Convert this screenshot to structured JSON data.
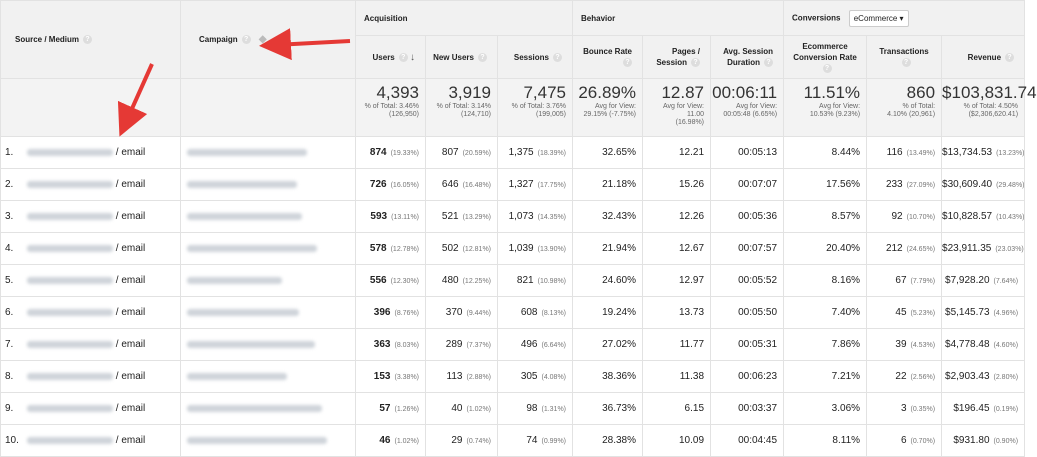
{
  "headers": {
    "source_medium": "Source / Medium",
    "campaign": "Campaign",
    "acquisition": "Acquisition",
    "behavior": "Behavior",
    "conversions": "Conversions",
    "conversions_select": "eCommerce",
    "users": "Users",
    "new_users": "New Users",
    "sessions": "Sessions",
    "bounce_rate": "Bounce Rate",
    "pages_session": "Pages / Session",
    "avg_session_duration": "Avg. Session Duration",
    "ecommerce_conversion_rate": "Ecommerce Conversion Rate",
    "transactions": "Transactions",
    "revenue": "Revenue"
  },
  "totals": {
    "users": {
      "value": "4,393",
      "sub1": "% of Total: 3.46%",
      "sub2": "(126,950)"
    },
    "new_users": {
      "value": "3,919",
      "sub1": "% of Total: 3.14%",
      "sub2": "(124,710)"
    },
    "sessions": {
      "value": "7,475",
      "sub1": "% of Total: 3.76%",
      "sub2": "(199,005)"
    },
    "bounce_rate": {
      "value": "26.89%",
      "sub1": "Avg for View:",
      "sub2": "29.15% (-7.75%)"
    },
    "pages_session": {
      "value": "12.87",
      "sub1": "Avg for View:",
      "sub2": "11.00",
      "sub3": "(16.98%)"
    },
    "avg_session_duration": {
      "value": "00:06:11",
      "sub1": "Avg for View:",
      "sub2": "00:05:48 (6.65%)"
    },
    "ecommerce_conversion_rate": {
      "value": "11.51%",
      "sub1": "Avg for View:",
      "sub2": "10.53% (9.23%)"
    },
    "transactions": {
      "value": "860",
      "sub1": "% of Total:",
      "sub2": "4.10% (20,961)"
    },
    "revenue": {
      "value": "$103,831.74",
      "sub1": "% of Total: 4.50%",
      "sub2": "($2,306,620.41)"
    }
  },
  "rows": [
    {
      "idx": "1.",
      "medium": "/ email",
      "users": "874",
      "users_pct": "(19.33%)",
      "new_users": "807",
      "new_users_pct": "(20.59%)",
      "sessions": "1,375",
      "sessions_pct": "(18.39%)",
      "bounce": "32.65%",
      "pages": "12.21",
      "duration": "00:05:13",
      "conv": "8.44%",
      "trans": "116",
      "trans_pct": "(13.49%)",
      "revenue": "$13,734.53",
      "revenue_pct": "(13.23%)"
    },
    {
      "idx": "2.",
      "medium": "/ email",
      "users": "726",
      "users_pct": "(16.05%)",
      "new_users": "646",
      "new_users_pct": "(16.48%)",
      "sessions": "1,327",
      "sessions_pct": "(17.75%)",
      "bounce": "21.18%",
      "pages": "15.26",
      "duration": "00:07:07",
      "conv": "17.56%",
      "trans": "233",
      "trans_pct": "(27.09%)",
      "revenue": "$30,609.40",
      "revenue_pct": "(29.48%)"
    },
    {
      "idx": "3.",
      "medium": "/ email",
      "users": "593",
      "users_pct": "(13.11%)",
      "new_users": "521",
      "new_users_pct": "(13.29%)",
      "sessions": "1,073",
      "sessions_pct": "(14.35%)",
      "bounce": "32.43%",
      "pages": "12.26",
      "duration": "00:05:36",
      "conv": "8.57%",
      "trans": "92",
      "trans_pct": "(10.70%)",
      "revenue": "$10,828.57",
      "revenue_pct": "(10.43%)"
    },
    {
      "idx": "4.",
      "medium": "/ email",
      "users": "578",
      "users_pct": "(12.78%)",
      "new_users": "502",
      "new_users_pct": "(12.81%)",
      "sessions": "1,039",
      "sessions_pct": "(13.90%)",
      "bounce": "21.94%",
      "pages": "12.67",
      "duration": "00:07:57",
      "conv": "20.40%",
      "trans": "212",
      "trans_pct": "(24.65%)",
      "revenue": "$23,911.35",
      "revenue_pct": "(23.03%)"
    },
    {
      "idx": "5.",
      "medium": "/ email",
      "users": "556",
      "users_pct": "(12.30%)",
      "new_users": "480",
      "new_users_pct": "(12.25%)",
      "sessions": "821",
      "sessions_pct": "(10.98%)",
      "bounce": "24.60%",
      "pages": "12.97",
      "duration": "00:05:52",
      "conv": "8.16%",
      "trans": "67",
      "trans_pct": "(7.79%)",
      "revenue": "$7,928.20",
      "revenue_pct": "(7.64%)"
    },
    {
      "idx": "6.",
      "medium": "/ email",
      "users": "396",
      "users_pct": "(8.76%)",
      "new_users": "370",
      "new_users_pct": "(9.44%)",
      "sessions": "608",
      "sessions_pct": "(8.13%)",
      "bounce": "19.24%",
      "pages": "13.73",
      "duration": "00:05:50",
      "conv": "7.40%",
      "trans": "45",
      "trans_pct": "(5.23%)",
      "revenue": "$5,145.73",
      "revenue_pct": "(4.96%)"
    },
    {
      "idx": "7.",
      "medium": "/ email",
      "users": "363",
      "users_pct": "(8.03%)",
      "new_users": "289",
      "new_users_pct": "(7.37%)",
      "sessions": "496",
      "sessions_pct": "(6.64%)",
      "bounce": "27.02%",
      "pages": "11.77",
      "duration": "00:05:31",
      "conv": "7.86%",
      "trans": "39",
      "trans_pct": "(4.53%)",
      "revenue": "$4,778.48",
      "revenue_pct": "(4.60%)"
    },
    {
      "idx": "8.",
      "medium": "/ email",
      "users": "153",
      "users_pct": "(3.38%)",
      "new_users": "113",
      "new_users_pct": "(2.88%)",
      "sessions": "305",
      "sessions_pct": "(4.08%)",
      "bounce": "38.36%",
      "pages": "11.38",
      "duration": "00:06:23",
      "conv": "7.21%",
      "trans": "22",
      "trans_pct": "(2.56%)",
      "revenue": "$2,903.43",
      "revenue_pct": "(2.80%)"
    },
    {
      "idx": "9.",
      "medium": "/ email",
      "users": "57",
      "users_pct": "(1.26%)",
      "new_users": "40",
      "new_users_pct": "(1.02%)",
      "sessions": "98",
      "sessions_pct": "(1.31%)",
      "bounce": "36.73%",
      "pages": "6.15",
      "duration": "00:03:37",
      "conv": "3.06%",
      "trans": "3",
      "trans_pct": "(0.35%)",
      "revenue": "$196.45",
      "revenue_pct": "(0.19%)"
    },
    {
      "idx": "10.",
      "medium": "/ email",
      "users": "46",
      "users_pct": "(1.02%)",
      "new_users": "29",
      "new_users_pct": "(0.74%)",
      "sessions": "74",
      "sessions_pct": "(0.99%)",
      "bounce": "28.38%",
      "pages": "10.09",
      "duration": "00:04:45",
      "conv": "8.11%",
      "trans": "6",
      "trans_pct": "(0.70%)",
      "revenue": "$931.80",
      "revenue_pct": "(0.90%)"
    }
  ],
  "colors": {
    "annotation_arrow": "#e53935",
    "header_bg": "#f1f1f1",
    "border": "#e2e2e2"
  },
  "icons": {
    "help": "question-circle-icon",
    "sort": "arrow-down-icon",
    "dropdown": "caret-down-icon",
    "annotation": "red-arrow"
  }
}
